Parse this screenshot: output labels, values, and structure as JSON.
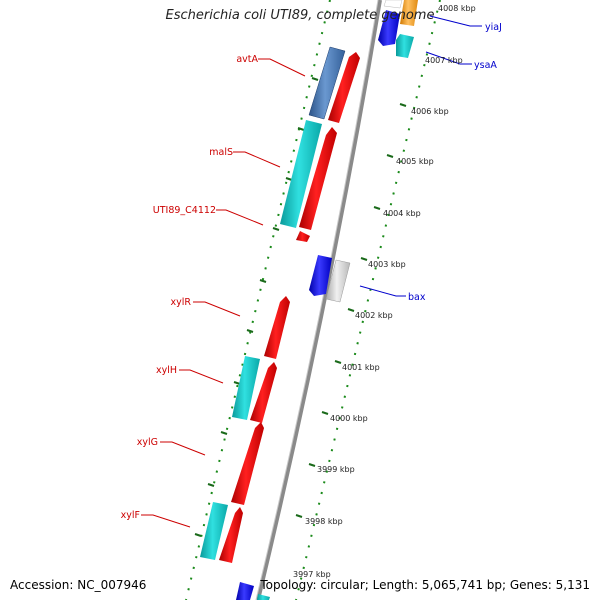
{
  "title": "Escherichia coli UTI89, complete genome",
  "footer": {
    "accession": "Accession: NC_007946",
    "topology": "Topology: circular; Length: 5,065,741 bp; Genes: 5,131"
  },
  "kbp_ticks": [
    "4008 kbp",
    "4007 kbp",
    "4006 kbp",
    "4005 kbp",
    "4004 kbp",
    "4003 kbp",
    "4002 kbp",
    "4001 kbp",
    "4000 kbp",
    "3999 kbp",
    "3998 kbp",
    "3997 kbp"
  ],
  "gene_labels": {
    "avtA": "avtA",
    "malS": "malS",
    "UTI89_C4112": "UTI89_C4112",
    "xylR": "xylR",
    "xylH": "xylH",
    "xylG": "xylG",
    "xylF": "xylF",
    "yiaJ": "yiaJ",
    "ysaA": "ysaA",
    "bax": "bax"
  },
  "colors": {
    "red_gene": "#ee1111",
    "cyan_gene": "#11cccc",
    "steel_gene": "#4a78b8",
    "blue_gene": "#1010e0",
    "grey_gene": "#cccccc",
    "orange_gene": "#f2a030",
    "axis": "#888888",
    "dots": "#1a8a1a",
    "label_red": "#cc0000",
    "label_blue": "#0000cc"
  }
}
